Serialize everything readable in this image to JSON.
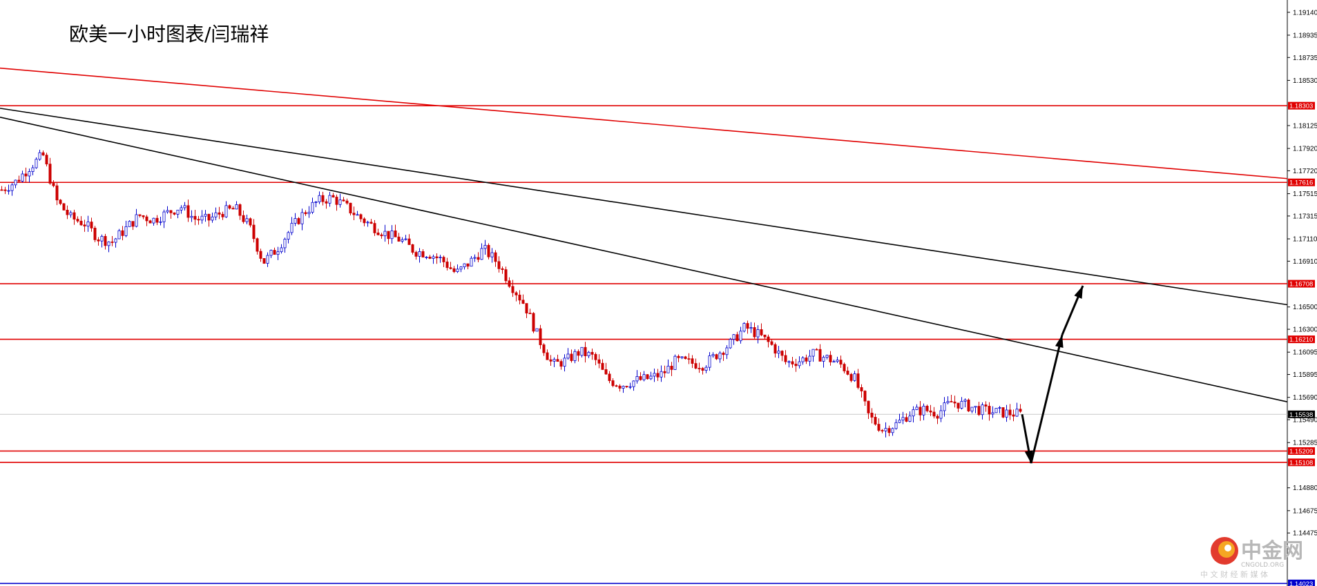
{
  "title": "欧美一小时图表/闫瑞祥",
  "chart_data": {
    "type": "candlestick",
    "title": "欧美一小时图表/闫瑞祥",
    "y_axis_position": "right",
    "ylim": [
      1.14,
      1.1925
    ],
    "y_ticks": [
      "1.19140",
      "1.18935",
      "1.18735",
      "1.18530",
      "1.18125",
      "1.17920",
      "1.17720",
      "1.17515",
      "1.17315",
      "1.17110",
      "1.16910",
      "1.16500",
      "1.16300",
      "1.16095",
      "1.15895",
      "1.15690",
      "1.15490",
      "1.15285",
      "1.14880",
      "1.14675",
      "1.14475"
    ],
    "horizontal_lines": [
      {
        "value": 1.18303,
        "label": "1.18303",
        "color": "#e00000"
      },
      {
        "value": 1.17616,
        "label": "1.17616",
        "color": "#e00000"
      },
      {
        "value": 1.16708,
        "label": "1.16708",
        "color": "#e00000"
      },
      {
        "value": 1.1621,
        "label": "1.16210",
        "color": "#e00000"
      },
      {
        "value": 1.15209,
        "label": "1.15209",
        "color": "#e00000"
      },
      {
        "value": 1.15108,
        "label": "1.15108",
        "color": "#e00000"
      },
      {
        "value": 1.14023,
        "label": "1.14023",
        "color": "#0000cc"
      }
    ],
    "current_price": {
      "value": 1.15538,
      "label": "1.15538"
    },
    "trendlines": [
      {
        "color": "#e00000",
        "start": 1.1864,
        "end": 1.1765
      },
      {
        "color": "#000000",
        "start": 1.1828,
        "end": 1.1652
      },
      {
        "color": "#000000",
        "start": 1.182,
        "end": 1.1565
      }
    ],
    "price_path": [
      1.1755,
      1.1762,
      1.1775,
      1.1786,
      1.1745,
      1.173,
      1.1725,
      1.1712,
      1.1708,
      1.172,
      1.1732,
      1.1728,
      1.1734,
      1.174,
      1.1729,
      1.1728,
      1.1735,
      1.1738,
      1.1722,
      1.169,
      1.1702,
      1.172,
      1.1735,
      1.1745,
      1.1748,
      1.174,
      1.173,
      1.1722,
      1.1715,
      1.171,
      1.17,
      1.1698,
      1.1692,
      1.168,
      1.169,
      1.1702,
      1.169,
      1.167,
      1.1652,
      1.1622,
      1.1598,
      1.1602,
      1.161,
      1.1605,
      1.1585,
      1.158,
      1.1584,
      1.1586,
      1.159,
      1.1602,
      1.16,
      1.1598,
      1.1608,
      1.1618,
      1.1632,
      1.1625,
      1.1615,
      1.16,
      1.1602,
      1.1608,
      1.1604,
      1.1598,
      1.1585,
      1.1552,
      1.154,
      1.1545,
      1.1555,
      1.1558,
      1.1555,
      1.1565,
      1.1562,
      1.1558,
      1.1556,
      1.1555,
      1.1554
    ],
    "candle_color_up": "#0000cc",
    "candle_color_down": "#cc0000",
    "forecast_arrow_prices": [
      1.15538,
      1.151,
      1.1625,
      1.1669
    ]
  },
  "watermark": {
    "name": "中金网",
    "latin": "CNGOLD.ORG",
    "tagline": "中 文 财 经 新 媒 体",
    "colors": [
      "#e23b2e",
      "#f5a623"
    ]
  }
}
